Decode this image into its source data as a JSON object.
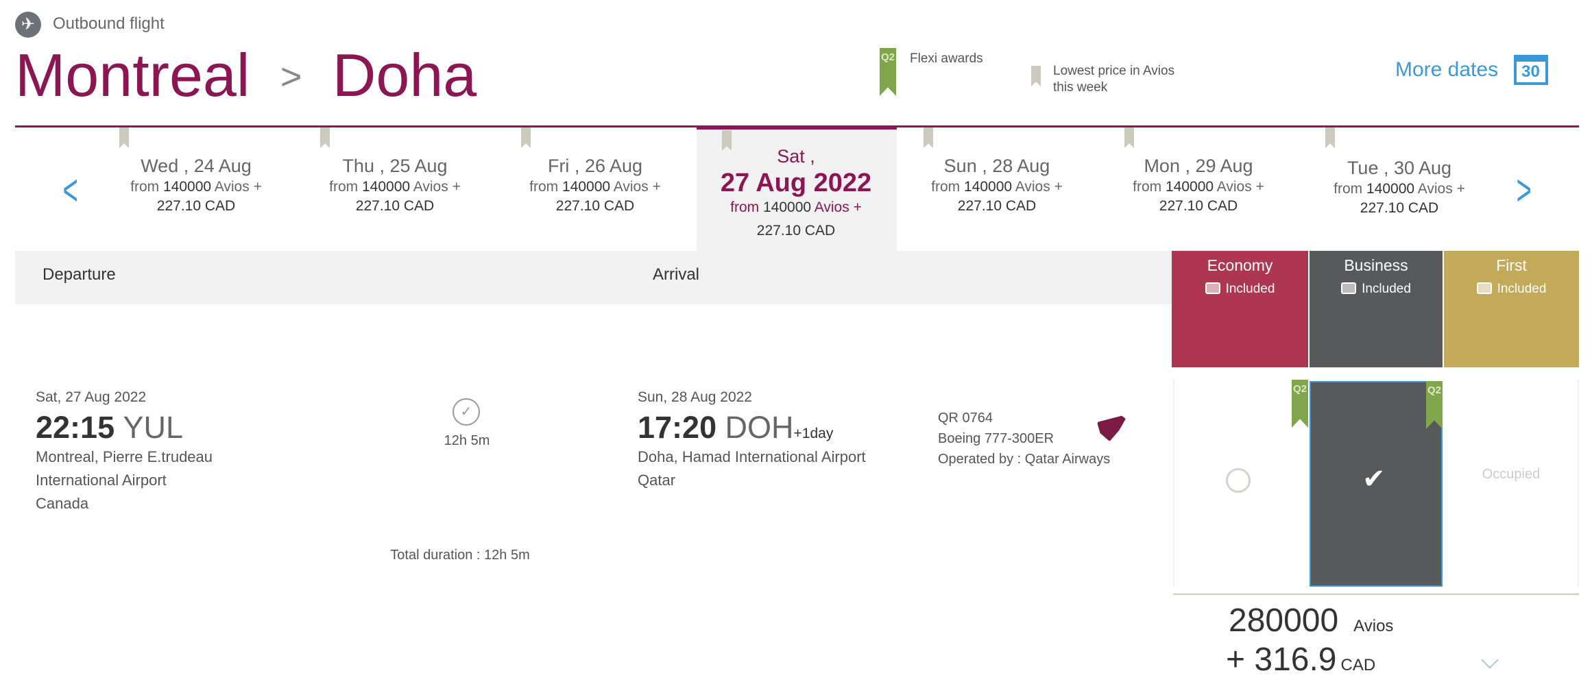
{
  "header": {
    "section": "Outbound flight",
    "origin": "Montreal",
    "separator": ">",
    "destination": "Doha"
  },
  "legend": {
    "flexi_badge": "Q2",
    "flexi_label": "Flexi awards",
    "lowest_label_1": "Lowest price in Avios",
    "lowest_label_2": "this week"
  },
  "more_dates": {
    "label": "More dates",
    "calendar_day": "30"
  },
  "dates": [
    {
      "day": "Wed , 24 Aug",
      "from": "from",
      "avios": "140000",
      "suffix": "Avios +",
      "price": "227.10 CAD"
    },
    {
      "day": "Thu , 25 Aug",
      "from": "from",
      "avios": "140000",
      "suffix": "Avios +",
      "price": "227.10 CAD"
    },
    {
      "day": "Fri , 26 Aug",
      "from": "from",
      "avios": "140000",
      "suffix": "Avios +",
      "price": "227.10 CAD"
    },
    {
      "day": "Sat ,",
      "date": "27 Aug 2022",
      "from": "from",
      "avios": "140000",
      "suffix": "Avios +",
      "price": "227.10 CAD",
      "selected": true
    },
    {
      "day": "Sun , 28 Aug",
      "from": "from",
      "avios": "140000",
      "suffix": "Avios +",
      "price": "227.10 CAD"
    },
    {
      "day": "Mon , 29 Aug",
      "from": "from",
      "avios": "140000",
      "suffix": "Avios +",
      "price": "227.10 CAD"
    },
    {
      "day": "Tue , 30 Aug",
      "from": "from",
      "avios": "140000",
      "suffix": "Avios +",
      "price": "227.10 CAD"
    }
  ],
  "columns": {
    "departure": "Departure",
    "arrival": "Arrival"
  },
  "cabins": [
    {
      "name": "Economy",
      "baggage": "Included",
      "color": "#ad3750"
    },
    {
      "name": "Business",
      "baggage": "Included",
      "color": "#58595b"
    },
    {
      "name": "First",
      "baggage": "Included",
      "color": "#c3a95a"
    }
  ],
  "flight": {
    "dep_date": "Sat, 27 Aug 2022",
    "dep_time": "22:15",
    "dep_code": "YUL",
    "dep_place_1": "Montreal, Pierre E.trudeau",
    "dep_place_2": "International Airport",
    "dep_place_3": "Canada",
    "duration": "12h 5m",
    "total_duration": "Total duration : 12h 5m",
    "arr_date": "Sun, 28 Aug 2022",
    "arr_time": "17:20",
    "arr_code": "DOH",
    "arr_offset": "+1day",
    "arr_place_1": "Doha, Hamad International Airport",
    "arr_place_2": "Qatar",
    "flight_no": "QR 0764",
    "aircraft": "Boeing 777-300ER",
    "operator": "Operated by : Qatar Airways"
  },
  "fares": {
    "economy_badge": "Q2",
    "business_badge": "Q2",
    "first_status": "Occupied",
    "selected": "Business"
  },
  "total": {
    "avios": "280000",
    "avios_unit": "Avios",
    "plus": "+ 316.9",
    "currency": "CAD"
  },
  "colors": {
    "brand": "#8c1654",
    "link": "#3a9ad9",
    "selected_border": "#3a9ad9"
  }
}
